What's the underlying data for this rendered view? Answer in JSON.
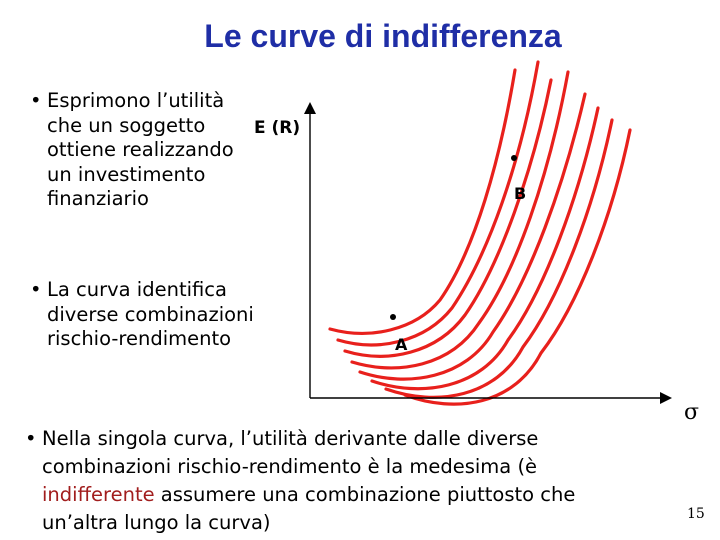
{
  "title": "Le curve di indifferenza",
  "bullets": {
    "b1": "Esprimono l’utilità che un soggetto ottiene realizzando un investimento finanziario",
    "b2": "La curva identifica diverse combinazioni rischio-rendimento",
    "b3_before": "Nella singola curva, l’utilità derivante dalle diverse combinazioni rischio-rendimento è la medesima (è ",
    "b3_highlight": "indifferente",
    "b3_after": " assumere una combinazione piuttosto che un’altra lungo la curva)"
  },
  "diagram": {
    "y_axis_label": "E (R)",
    "x_axis_label": "σ",
    "point_a_label": "A",
    "point_b_label": "B",
    "curve_count": 8,
    "curve_color": "#e8201c"
  },
  "page_number": "15"
}
